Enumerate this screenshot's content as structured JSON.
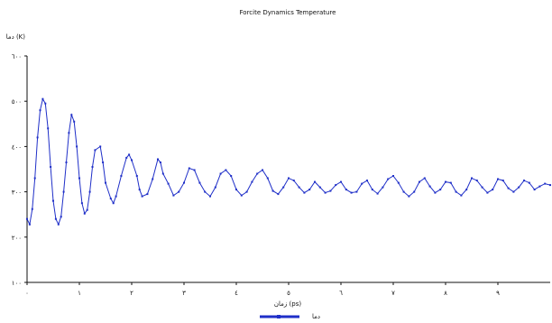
{
  "chart_data": {
    "type": "line",
    "title": "Forcite Dynamics Temperature",
    "ylabel": "دما  (K)",
    "xlabel": "زمان  (ps)",
    "xlim": [
      0,
      10
    ],
    "ylim": [
      100,
      600
    ],
    "x_ticks": [
      0,
      1,
      2,
      3,
      4,
      5,
      6,
      7,
      8,
      9
    ],
    "x_tick_labels": [
      "٠",
      "١",
      "٢",
      "٣",
      "٤",
      "٥",
      "٦",
      "٧",
      "٨",
      "٩"
    ],
    "y_ticks": [
      100,
      200,
      300,
      400,
      500,
      600
    ],
    "y_tick_labels": [
      "١٠٠",
      "٢٠٠",
      "٣٠٠",
      "٤٠٠",
      "٥٠٠",
      "٦٠٠"
    ],
    "grid": false,
    "legend": "bottom-center",
    "series": [
      {
        "name": "دما",
        "color": "#1f2fc8",
        "points": [
          [
            0.0,
            240
          ],
          [
            0.05,
            228
          ],
          [
            0.1,
            262
          ],
          [
            0.15,
            330
          ],
          [
            0.2,
            420
          ],
          [
            0.25,
            480
          ],
          [
            0.3,
            505
          ],
          [
            0.35,
            495
          ],
          [
            0.4,
            440
          ],
          [
            0.45,
            355
          ],
          [
            0.5,
            280
          ],
          [
            0.55,
            240
          ],
          [
            0.6,
            228
          ],
          [
            0.65,
            245
          ],
          [
            0.7,
            300
          ],
          [
            0.75,
            365
          ],
          [
            0.8,
            430
          ],
          [
            0.85,
            470
          ],
          [
            0.9,
            455
          ],
          [
            0.95,
            400
          ],
          [
            1.0,
            330
          ],
          [
            1.05,
            275
          ],
          [
            1.1,
            252
          ],
          [
            1.15,
            260
          ],
          [
            1.2,
            300
          ],
          [
            1.25,
            355
          ],
          [
            1.3,
            392
          ],
          [
            1.4,
            400
          ],
          [
            1.45,
            365
          ],
          [
            1.5,
            320
          ],
          [
            1.6,
            285
          ],
          [
            1.65,
            275
          ],
          [
            1.7,
            290
          ],
          [
            1.8,
            335
          ],
          [
            1.9,
            375
          ],
          [
            1.95,
            382
          ],
          [
            2.0,
            370
          ],
          [
            2.1,
            335
          ],
          [
            2.15,
            305
          ],
          [
            2.2,
            290
          ],
          [
            2.3,
            295
          ],
          [
            2.4,
            328
          ],
          [
            2.5,
            372
          ],
          [
            2.55,
            365
          ],
          [
            2.6,
            340
          ],
          [
            2.7,
            318
          ],
          [
            2.8,
            292
          ],
          [
            2.9,
            300
          ],
          [
            3.0,
            320
          ],
          [
            3.1,
            352
          ],
          [
            3.2,
            348
          ],
          [
            3.3,
            320
          ],
          [
            3.4,
            300
          ],
          [
            3.5,
            290
          ],
          [
            3.6,
            310
          ],
          [
            3.7,
            340
          ],
          [
            3.8,
            348
          ],
          [
            3.9,
            335
          ],
          [
            4.0,
            305
          ],
          [
            4.1,
            292
          ],
          [
            4.2,
            300
          ],
          [
            4.3,
            322
          ],
          [
            4.4,
            340
          ],
          [
            4.5,
            348
          ],
          [
            4.6,
            330
          ],
          [
            4.7,
            302
          ],
          [
            4.8,
            295
          ],
          [
            4.9,
            310
          ],
          [
            5.0,
            330
          ],
          [
            5.1,
            325
          ],
          [
            5.2,
            310
          ],
          [
            5.3,
            298
          ],
          [
            5.4,
            305
          ],
          [
            5.5,
            322
          ],
          [
            5.6,
            310
          ],
          [
            5.7,
            298
          ],
          [
            5.8,
            302
          ],
          [
            5.9,
            315
          ],
          [
            6.0,
            322
          ],
          [
            6.1,
            305
          ],
          [
            6.2,
            298
          ],
          [
            6.3,
            300
          ],
          [
            6.4,
            318
          ],
          [
            6.5,
            325
          ],
          [
            6.6,
            305
          ],
          [
            6.7,
            296
          ],
          [
            6.8,
            310
          ],
          [
            6.9,
            328
          ],
          [
            7.0,
            335
          ],
          [
            7.1,
            320
          ],
          [
            7.2,
            300
          ],
          [
            7.3,
            290
          ],
          [
            7.4,
            300
          ],
          [
            7.5,
            322
          ],
          [
            7.6,
            330
          ],
          [
            7.7,
            312
          ],
          [
            7.8,
            298
          ],
          [
            7.9,
            305
          ],
          [
            8.0,
            322
          ],
          [
            8.1,
            320
          ],
          [
            8.2,
            300
          ],
          [
            8.3,
            292
          ],
          [
            8.4,
            305
          ],
          [
            8.5,
            330
          ],
          [
            8.6,
            325
          ],
          [
            8.7,
            310
          ],
          [
            8.8,
            298
          ],
          [
            8.9,
            305
          ],
          [
            9.0,
            328
          ],
          [
            9.1,
            325
          ],
          [
            9.2,
            308
          ],
          [
            9.3,
            300
          ],
          [
            9.4,
            310
          ],
          [
            9.5,
            325
          ],
          [
            9.6,
            320
          ],
          [
            9.7,
            305
          ],
          [
            9.8,
            312
          ],
          [
            9.9,
            318
          ],
          [
            10.0,
            315
          ]
        ]
      }
    ]
  }
}
